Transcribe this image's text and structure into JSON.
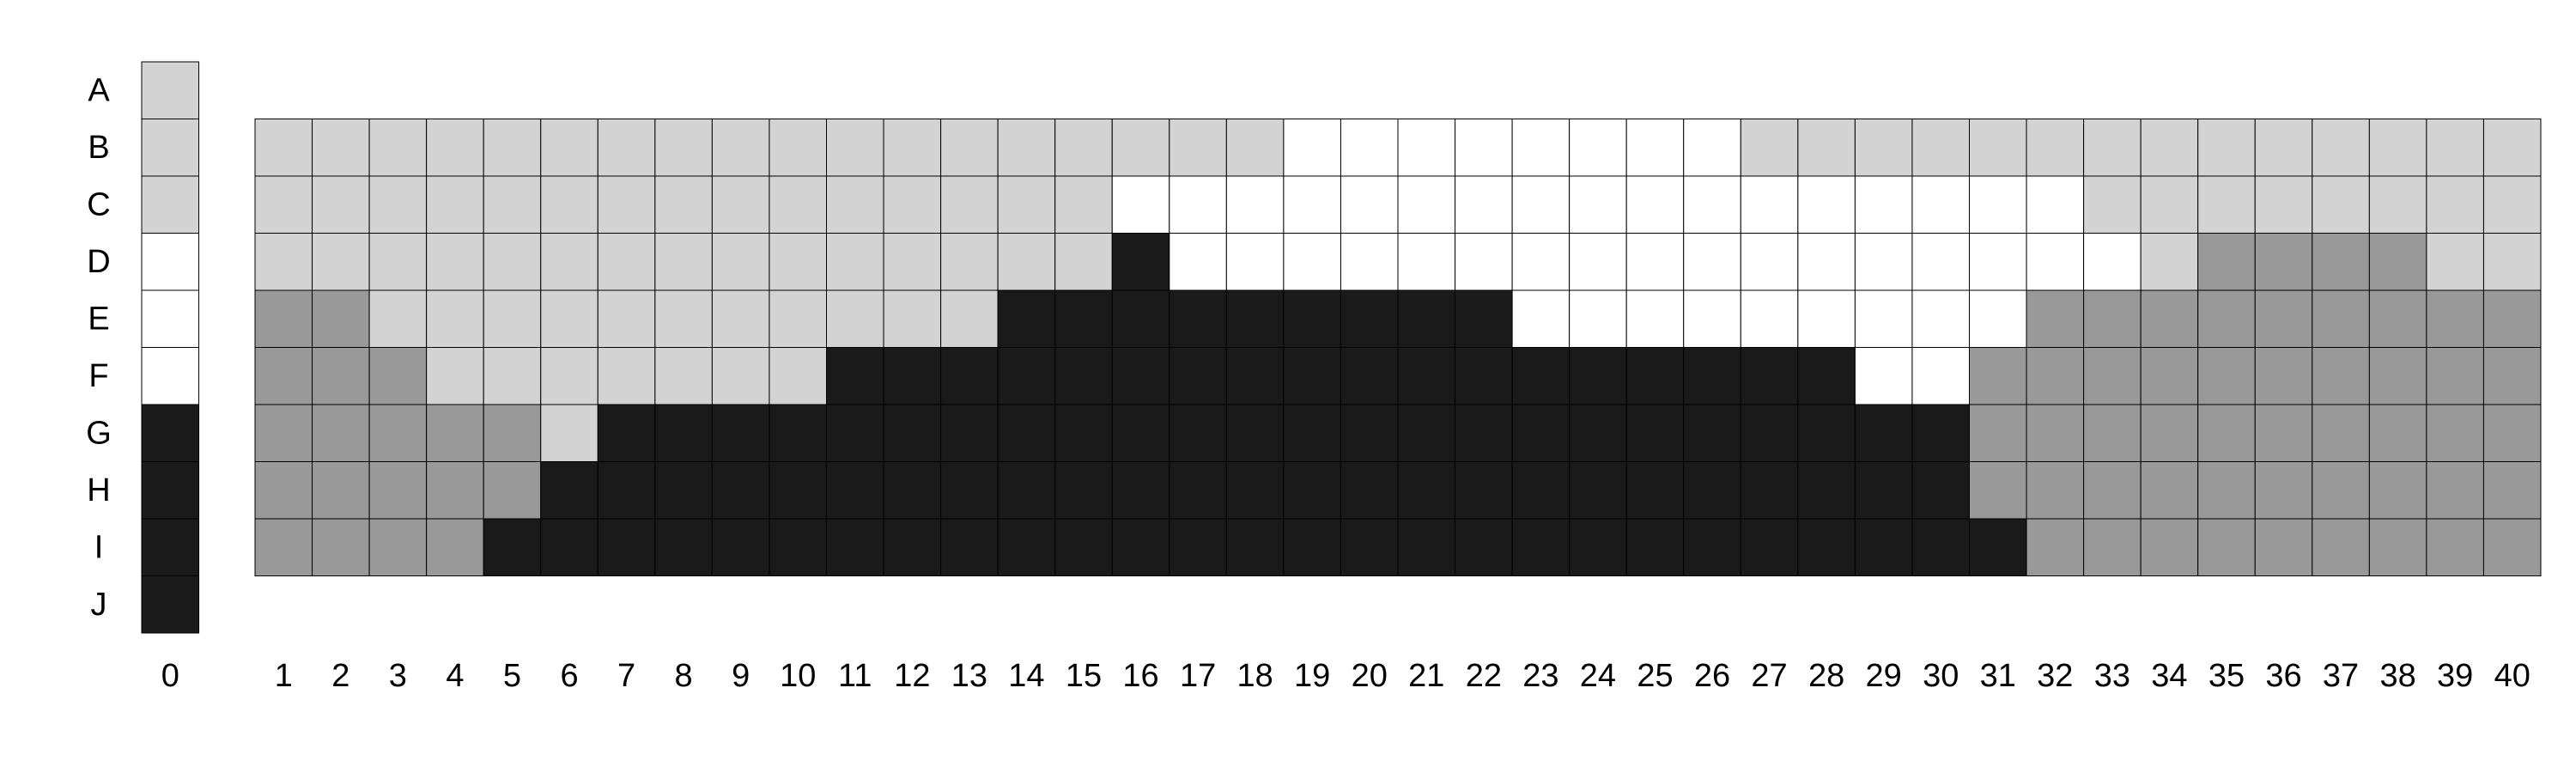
{
  "legend": {
    "shades": {
      "L": "#d3d3d3",
      "W": "#ffffff",
      "D": "#1a1a1a",
      "G": "#999999"
    }
  },
  "chart_data": {
    "type": "heatmap",
    "title": "",
    "rows": [
      "A",
      "B",
      "C",
      "D",
      "E",
      "F",
      "G",
      "H",
      "I",
      "J"
    ],
    "reference_column": {
      "label": "0",
      "cells": [
        "L",
        "L",
        "L",
        "W",
        "W",
        "W",
        "D",
        "D",
        "D",
        "D"
      ]
    },
    "columns": [
      "1",
      "2",
      "3",
      "4",
      "5",
      "6",
      "7",
      "8",
      "9",
      "10",
      "11",
      "12",
      "13",
      "14",
      "15",
      "16",
      "17",
      "18",
      "19",
      "20",
      "21",
      "22",
      "23",
      "24",
      "25",
      "26",
      "27",
      "28",
      "29",
      "30",
      "31",
      "32",
      "33",
      "34",
      "35",
      "36",
      "37",
      "38",
      "39",
      "40"
    ],
    "grid_rows": [
      "B",
      "C",
      "D",
      "E",
      "F",
      "G",
      "H",
      "I"
    ],
    "grid": [
      "LLLLLLLLLLLLLLLLLLWWWWWWWWLLLLLLLLLLLLLL",
      "LLLLLLLLLLLLLLLWWWWWWWWWWWWWWWWWLLLLLLLL",
      "LLLLLLLLLLLLLLLDWWWWWWWWWWWWWWWWWLGGGGLL",
      "GGLLLLLLLLLLLDDDDDDDDDWWWWWWWWWGGGGGGGGG",
      "GGGLLLLLLLDDDDDDDDDDDDDDDDDDWWGGGGGGGGGG",
      "GGGGGLDDDDDDDDDDDDDDDDDDDDDDDDGGGGGGGGGG",
      "GGGGGDDDDDDDDDDDDDDDDDDDDDDDDDGGGGGGGGGG",
      "GGGGDDDDDDDDDDDDDDDDDDDDDDDDDDDGGGGGGGGG"
    ]
  }
}
